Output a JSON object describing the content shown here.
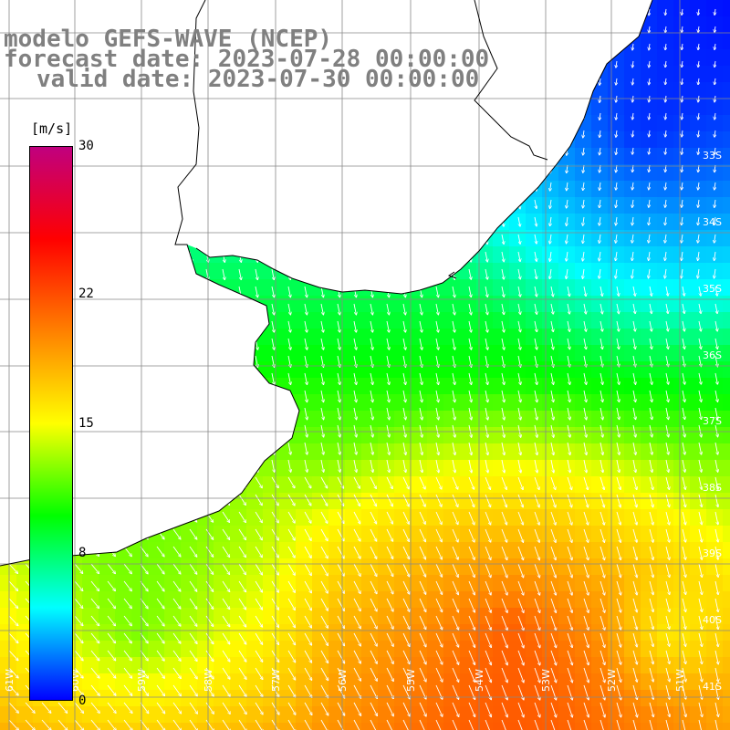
{
  "titles": {
    "line1": "modelo GEFS-WAVE (NCEP)",
    "line2": "forecast date: 2023-07-28 00:00:00",
    "line3": "valid date: 2023-07-30 00:00:00"
  },
  "colorbar": {
    "unit": "[m/s]",
    "ticks": [
      {
        "label": "30",
        "value": 30
      },
      {
        "label": "22",
        "value": 22
      },
      {
        "label": "15",
        "value": 15
      },
      {
        "label": "8",
        "value": 8
      },
      {
        "label": "0",
        "value": 0
      }
    ],
    "min": 0,
    "max": 30,
    "colors": [
      "#0000ff",
      "#00ffff",
      "#00ff00",
      "#ffff00",
      "#ff8000",
      "#ff0000",
      "#c0007f"
    ]
  },
  "map": {
    "lat_labels": [
      "33S",
      "34S",
      "35S",
      "36S",
      "37S",
      "38S",
      "39S",
      "40S",
      "41S"
    ],
    "lon_labels": [
      "61W",
      "60W",
      "59W",
      "58W",
      "57W",
      "56W",
      "55W",
      "54W",
      "53W",
      "52W",
      "51W"
    ],
    "land_color": "#ffffff",
    "coast_color": "#000000",
    "grid_color": "#888888",
    "arrow_color": "#ffffff"
  }
}
